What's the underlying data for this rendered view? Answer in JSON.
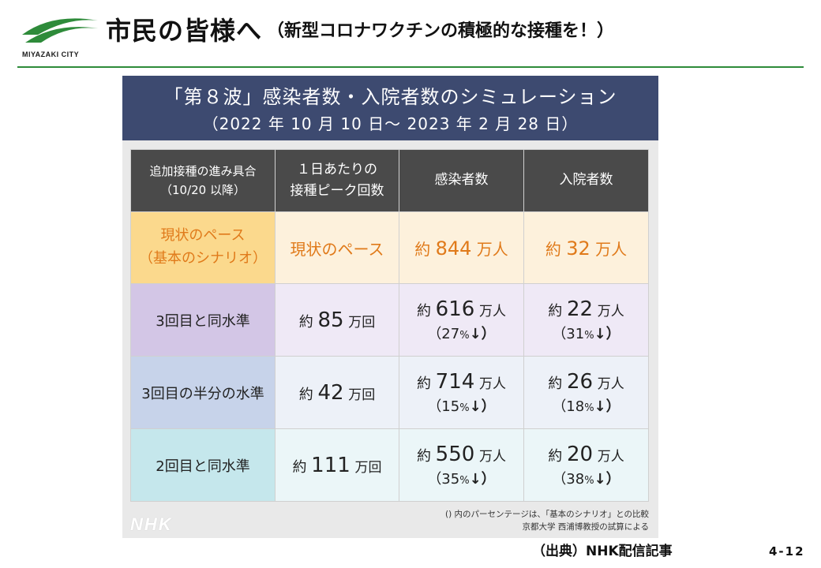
{
  "header": {
    "logo_text": "MIYAZAKI CITY",
    "title_main": "市民の皆様へ",
    "title_sub": "（新型コロナワクチンの積極的な接種を！）"
  },
  "panel": {
    "title": "「第８波」感染者数・入院者数のシミュレーション",
    "period": "（2022 年 10 月 10 日〜 2023 年 2 月 28 日）"
  },
  "table": {
    "headers": {
      "col1_line1": "追加接種の進み具合",
      "col1_line2": "（10/20 以降）",
      "col2_line1": "１日あたりの",
      "col2_line2": "接種ピーク回数",
      "col3": "感染者数",
      "col4": "入院者数"
    },
    "base_row": {
      "label_line1": "現状のペース",
      "label_line2": "（基本のシナリオ）",
      "peak": "現状のペース",
      "infected_prefix": "約",
      "infected_num": "844",
      "infected_unit": "万人",
      "hosp_prefix": "約",
      "hosp_num": "32",
      "hosp_unit": "万人"
    },
    "rows": [
      {
        "label": "3回目と同水準",
        "peak_prefix": "約",
        "peak_num": "85",
        "peak_unit": "万回",
        "infected_prefix": "約",
        "infected_num": "616",
        "infected_unit": "万人",
        "infected_pct_open": "（27",
        "infected_pct_sym": "%",
        "infected_pct_close": "↓）",
        "hosp_prefix": "約",
        "hosp_num": "22",
        "hosp_unit": "万人",
        "hosp_pct_open": "（31",
        "hosp_pct_sym": "%",
        "hosp_pct_close": "↓）"
      },
      {
        "label": "3回目の半分の水準",
        "peak_prefix": "約",
        "peak_num": "42",
        "peak_unit": "万回",
        "infected_prefix": "約",
        "infected_num": "714",
        "infected_unit": "万人",
        "infected_pct_open": "（15",
        "infected_pct_sym": "%",
        "infected_pct_close": "↓）",
        "hosp_prefix": "約",
        "hosp_num": "26",
        "hosp_unit": "万人",
        "hosp_pct_open": "（18",
        "hosp_pct_sym": "%",
        "hosp_pct_close": "↓）"
      },
      {
        "label": "2回目と同水準",
        "peak_prefix": "約",
        "peak_num": "111",
        "peak_unit": "万回",
        "infected_prefix": "約",
        "infected_num": "550",
        "infected_unit": "万人",
        "infected_pct_open": "（35",
        "infected_pct_sym": "%",
        "infected_pct_close": "↓）",
        "hosp_prefix": "約",
        "hosp_num": "20",
        "hosp_unit": "万人",
        "hosp_pct_open": "（38",
        "hosp_pct_sym": "%",
        "hosp_pct_close": "↓）"
      }
    ]
  },
  "notes": {
    "line1": "() 内のパーセンテージは、「基本のシナリオ」との比較",
    "line2": "京都大学 西浦博教授の試算による"
  },
  "watermark": "NHK",
  "source": "（出典）NHK配信記事",
  "page_number": "4-12",
  "colors": {
    "accent_green": "#2e8b3a",
    "panel_header": "#3d4a70",
    "table_header": "#4a4a4a",
    "base_highlight": "#fbd98d",
    "base_text": "#e07a1a"
  }
}
